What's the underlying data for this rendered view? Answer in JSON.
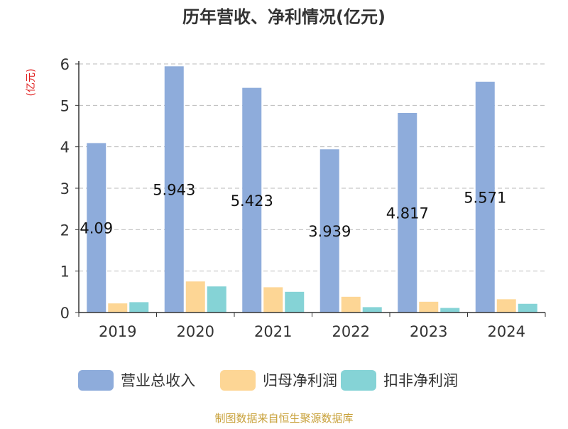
{
  "chart_data": {
    "type": "bar",
    "title": "历年营收、净利情况(亿元)",
    "ylabel": "(亿元)",
    "xlabel": "",
    "categories": [
      "2019",
      "2020",
      "2021",
      "2022",
      "2023",
      "2024"
    ],
    "ylim": [
      0,
      6
    ],
    "yticks": [
      0,
      1,
      2,
      3,
      4,
      5,
      6
    ],
    "grid": true,
    "legend_position": "bottom",
    "series": [
      {
        "name": "营业总收入",
        "color": "#8eacdb",
        "values": [
          4.09,
          5.943,
          5.423,
          3.939,
          4.817,
          5.571
        ],
        "data_labels": [
          "4.09",
          "5.943",
          "5.423",
          "3.939",
          "4.817",
          "5.571"
        ]
      },
      {
        "name": "归母净利润",
        "color": "#fdd695",
        "values": [
          0.22,
          0.75,
          0.61,
          0.38,
          0.26,
          0.32
        ]
      },
      {
        "name": "扣非净利润",
        "color": "#85d3d6",
        "values": [
          0.25,
          0.63,
          0.5,
          0.13,
          0.11,
          0.21
        ]
      }
    ]
  },
  "source_text": "制图数据来自恒生聚源数据库"
}
